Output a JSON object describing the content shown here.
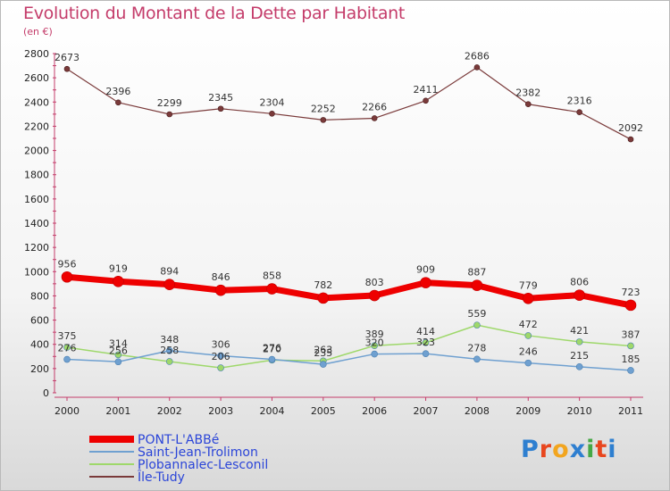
{
  "title": "Evolution du Montant de la Dette par Habitant",
  "subtitle": "(en €)",
  "logo": {
    "text": "Proxiti",
    "letter_colors": [
      "#2e7fd0",
      "#e8461e",
      "#f2a51f",
      "#2e7fd0",
      "#46a846",
      "#e8461e",
      "#2e7fd0"
    ]
  },
  "chart_data": {
    "type": "line",
    "x": [
      "2000",
      "2001",
      "2002",
      "2003",
      "2004",
      "2005",
      "2006",
      "2007",
      "2008",
      "2009",
      "2010",
      "2011"
    ],
    "ylim": [
      0,
      2800
    ],
    "yticks": [
      0,
      200,
      400,
      600,
      800,
      1000,
      1200,
      1400,
      1600,
      1800,
      2000,
      2200,
      2400,
      2600,
      2800
    ],
    "grid": false,
    "legend_position": "bottom-left",
    "series": [
      {
        "name": "PONT-L'ABBé",
        "color": "#ee0000",
        "line_width": 7,
        "marker_radius": 6,
        "values": [
          956,
          919,
          894,
          846,
          858,
          782,
          803,
          909,
          887,
          779,
          806,
          723
        ]
      },
      {
        "name": "Saint-Jean-Trolimon",
        "color": "#6fa0d0",
        "line_width": 1.5,
        "marker_radius": 3.5,
        "values": [
          276,
          256,
          348,
          306,
          276,
          235,
          320,
          323,
          278,
          246,
          215,
          185
        ]
      },
      {
        "name": "Plobannalec-Lesconil",
        "color": "#9ed86a",
        "line_width": 1.5,
        "marker_radius": 3.5,
        "values": [
          375,
          314,
          258,
          206,
          270,
          263,
          389,
          414,
          559,
          472,
          421,
          387
        ]
      },
      {
        "name": "Île-Tudy",
        "color": "#7a3a3a",
        "line_width": 1.2,
        "marker_radius": 3,
        "values": [
          2673,
          2396,
          2299,
          2345,
          2304,
          2252,
          2266,
          2411,
          2686,
          2382,
          2316,
          2092
        ]
      }
    ],
    "labels": [
      {
        "series": 0,
        "text": [
          "956",
          "919",
          "894",
          "846",
          "858",
          "782",
          "803",
          "909",
          "887",
          "779",
          "806",
          "723"
        ]
      },
      {
        "series": 1,
        "text": [
          "276",
          "256",
          "348",
          "306",
          "276",
          "235",
          "320",
          "323",
          "278",
          "246",
          "215",
          "185"
        ]
      },
      {
        "series": 2,
        "text": [
          "375",
          "314",
          "258",
          "206",
          "270",
          "263",
          "389",
          "414",
          "559",
          "472",
          "421",
          "387"
        ]
      },
      {
        "series": 3,
        "text": [
          "2673",
          "2396",
          "2299",
          "2345",
          "2304",
          "2252",
          "2266",
          "2411",
          "2686",
          "2382",
          "2316",
          "2092"
        ]
      }
    ]
  }
}
